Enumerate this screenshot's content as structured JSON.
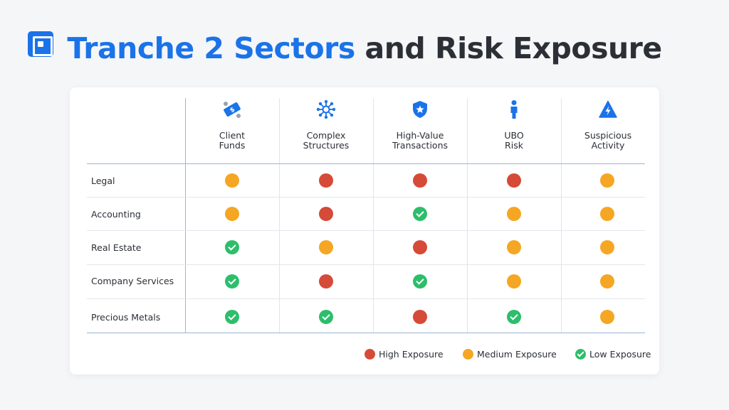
{
  "title": {
    "part1": "Tranche 2 Sectors",
    "part2": "and Risk Exposure"
  },
  "columns": [
    {
      "line1": "Client",
      "line2": "Funds",
      "icon": "cash-icon"
    },
    {
      "line1": "Complex",
      "line2": "Structures",
      "icon": "network-icon"
    },
    {
      "line1": "High-Value",
      "line2": "Transactions",
      "icon": "shield-star-icon"
    },
    {
      "line1": "UBO",
      "line2": "Risk",
      "icon": "person-icon"
    },
    {
      "line1": "Suspicious",
      "line2": "Activity",
      "icon": "warning-bolt-icon"
    }
  ],
  "rows": [
    {
      "label": "Legal",
      "levels": [
        "medium",
        "high",
        "high",
        "high",
        "medium"
      ]
    },
    {
      "label": "Accounting",
      "levels": [
        "medium",
        "high",
        "low",
        "medium",
        "medium"
      ]
    },
    {
      "label": "Real Estate",
      "levels": [
        "low",
        "medium",
        "high",
        "medium",
        "medium"
      ]
    },
    {
      "label": "Company Services",
      "levels": [
        "low",
        "high",
        "low",
        "medium",
        "medium"
      ]
    },
    {
      "label": "Precious Metals",
      "levels": [
        "low",
        "low",
        "high",
        "low",
        "medium"
      ]
    }
  ],
  "legend": {
    "high": "High Exposure",
    "medium": "Medium Exposure",
    "low": "Low Exposure"
  },
  "colors": {
    "accent": "#1a73e8",
    "high": "#d64a38",
    "medium": "#f5a623",
    "low": "#2dbe6c"
  }
}
